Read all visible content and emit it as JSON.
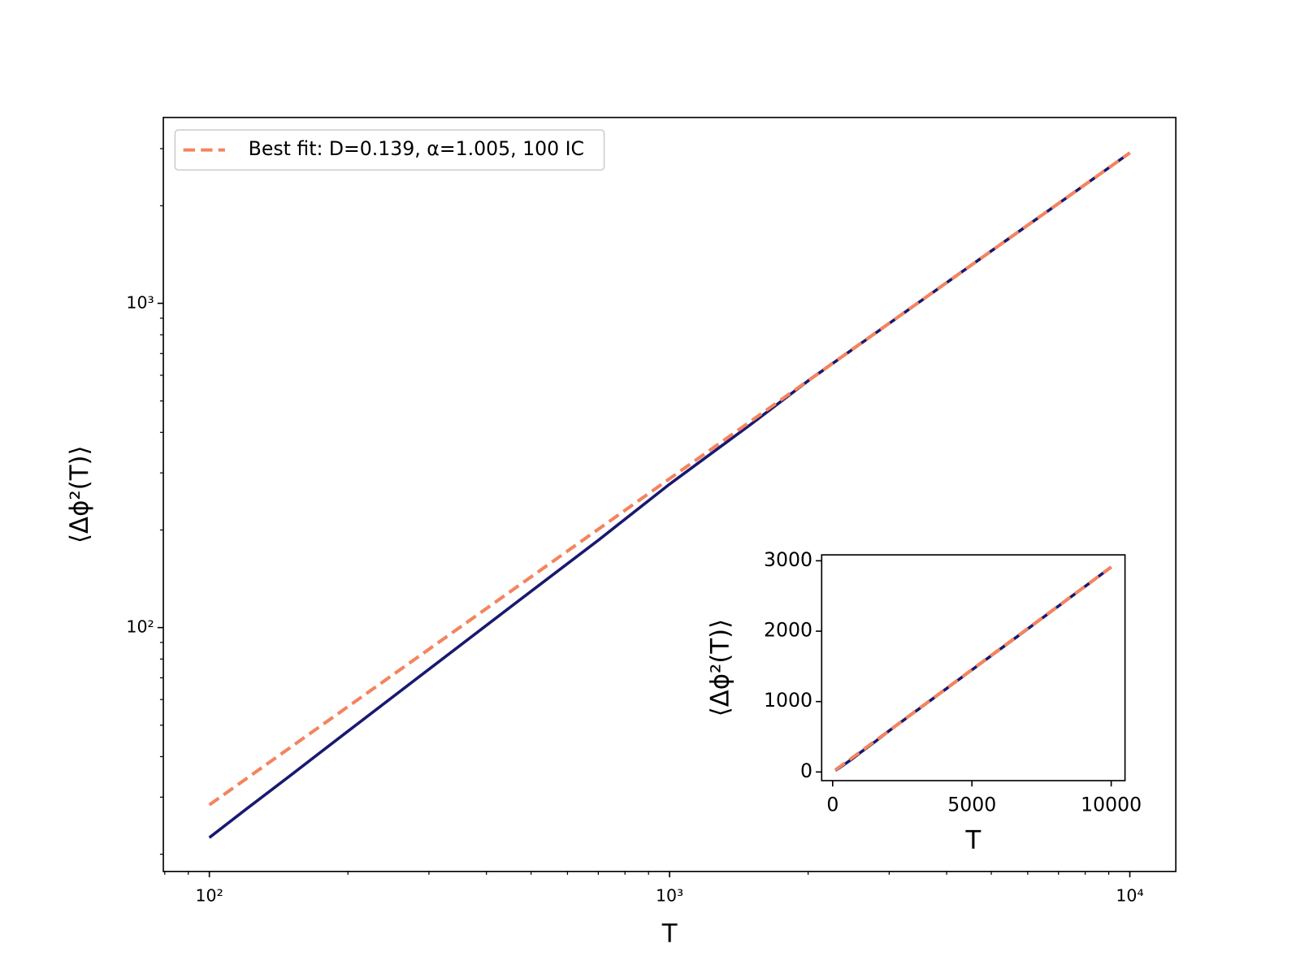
{
  "chart_data": [
    {
      "type": "line",
      "x_label": "T",
      "y_label": "⟨Δϕ²(T)⟩",
      "xscale": "log",
      "yscale": "log",
      "legend": "upper left",
      "grid": false,
      "xlim": [
        79.43,
        12589
      ],
      "ylim": [
        17.7,
        3743
      ],
      "xticks": [
        {
          "value": 100,
          "label": "10²"
        },
        {
          "value": 1000,
          "label": "10³"
        },
        {
          "value": 10000,
          "label": "10⁴"
        }
      ],
      "xticks_minor": [
        80,
        90,
        200,
        300,
        400,
        500,
        600,
        700,
        800,
        900,
        2000,
        3000,
        4000,
        5000,
        6000,
        7000,
        8000,
        9000
      ],
      "yticks": [
        {
          "value": 100,
          "label": "10²"
        },
        {
          "value": 1000,
          "label": "10³"
        }
      ],
      "yticks_minor": [
        20,
        30,
        40,
        50,
        60,
        70,
        80,
        90,
        200,
        300,
        400,
        500,
        600,
        700,
        800,
        900,
        2000,
        3000
      ],
      "series": [
        {
          "color": "#191970",
          "x": [
            100,
            120,
            150,
            200,
            300,
            500,
            700,
            1000,
            1500,
            2000,
            3000,
            5000,
            7000,
            10000
          ],
          "values": [
            22.5,
            27.5,
            35.0,
            47.9,
            74.4,
            129.4,
            186,
            277,
            423,
            577,
            867,
            1450,
            2032,
            2911
          ]
        },
        {
          "name": "Best fit: D=0.139, α=1.005, 100 IC",
          "color": "#f4845f",
          "dashed": true,
          "x": [
            100,
            1000,
            10000
          ],
          "values": [
            28.4,
            287.8,
            2911
          ]
        }
      ]
    },
    {
      "type": "line",
      "x_label": "T",
      "y_label": "⟨Δϕ²(T)⟩",
      "grid": false,
      "xlim": [
        -395,
        10495
      ],
      "ylim": [
        -123,
        3084
      ],
      "xticks": [
        0,
        5000,
        10000
      ],
      "yticks": [
        0,
        1000,
        2000,
        3000
      ],
      "series": [
        {
          "color": "#191970",
          "x": [
            100,
            120,
            150,
            200,
            300,
            500,
            700,
            1000,
            1500,
            2000,
            3000,
            5000,
            7000,
            10000
          ],
          "values": [
            22.5,
            27.5,
            35.0,
            47.9,
            74.4,
            129.4,
            186,
            277,
            423,
            577,
            867,
            1450,
            2032,
            2911
          ]
        },
        {
          "color": "#f4845f",
          "dashed": true,
          "x": [
            100,
            1000,
            10000
          ],
          "values": [
            28.4,
            287.8,
            2911
          ]
        }
      ]
    }
  ]
}
